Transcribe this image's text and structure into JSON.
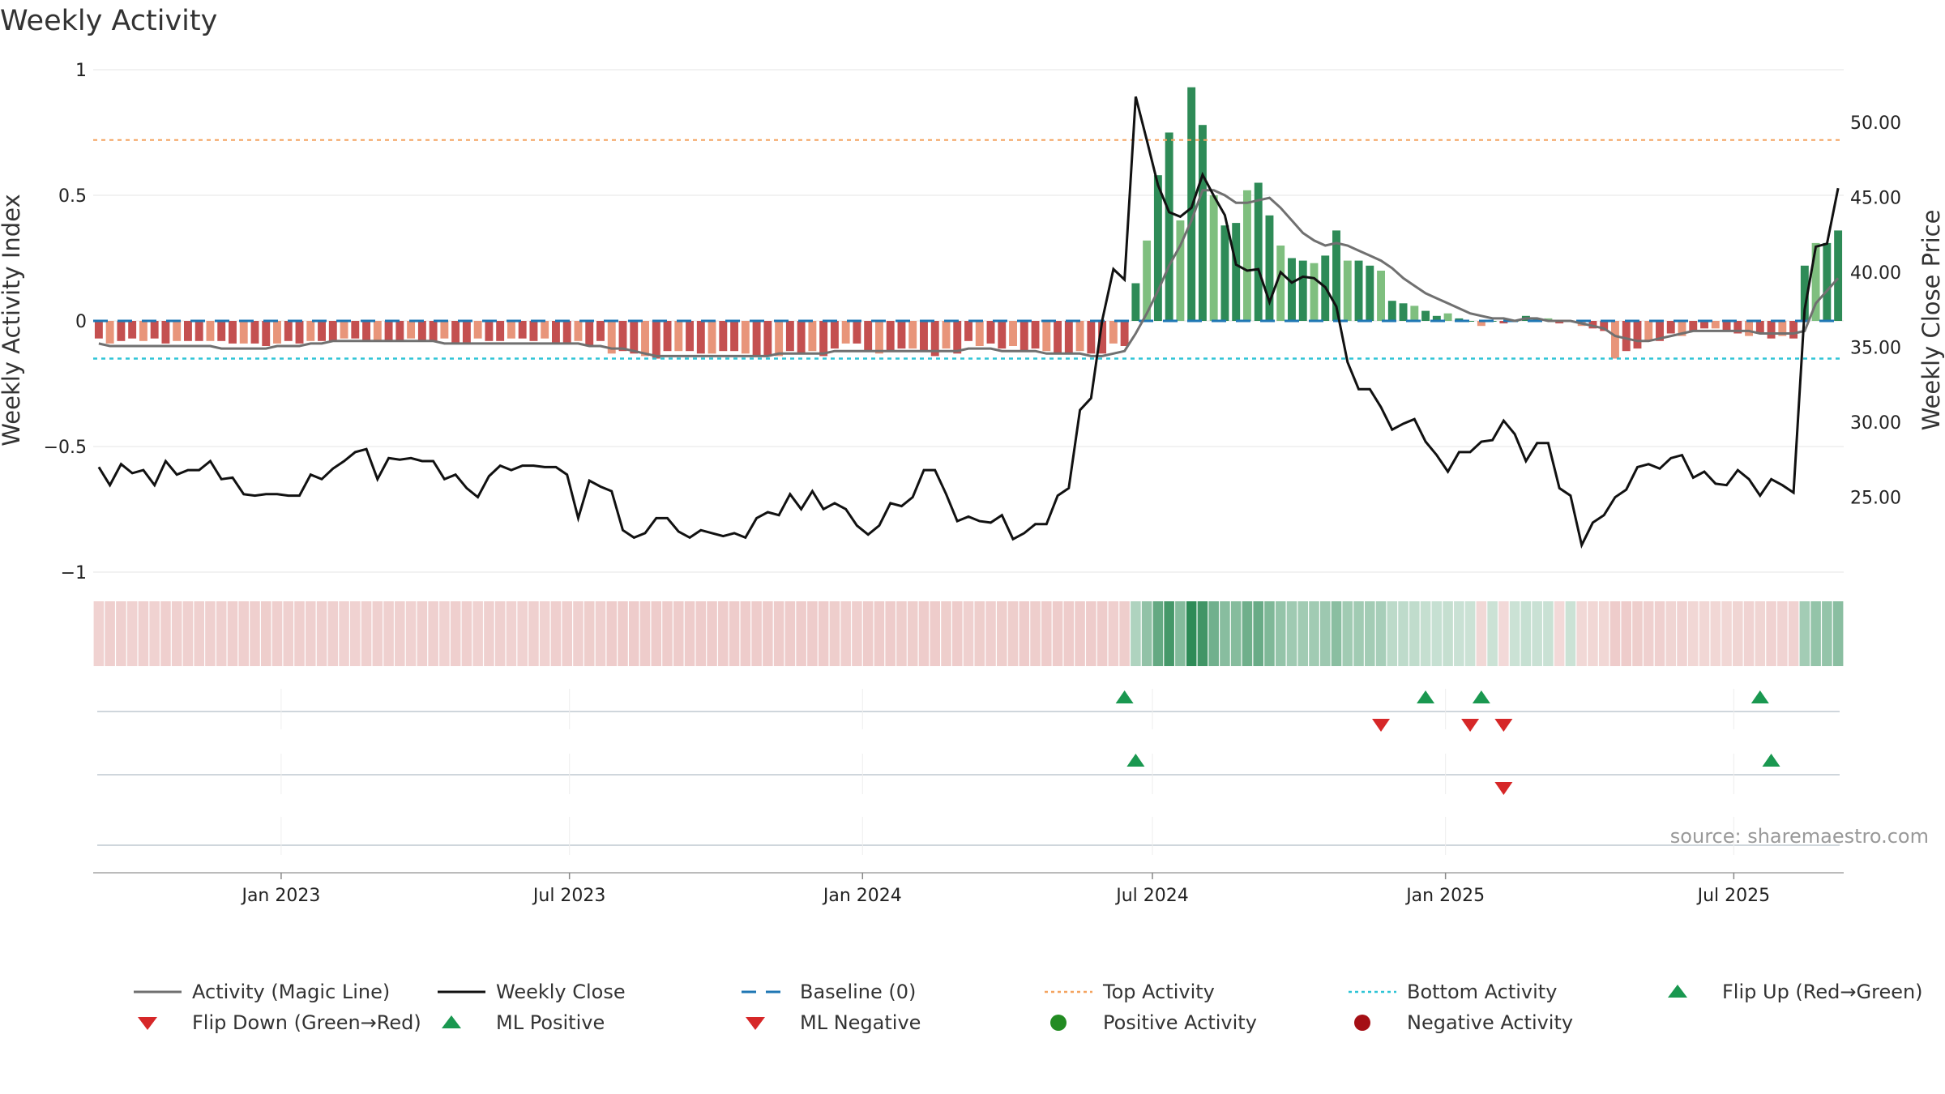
{
  "chart_data": {
    "type": "bar",
    "title": "Weekly Activity",
    "ylabel_left": "Weekly Activity Index",
    "ylabel_right": "Weekly Close Price",
    "ylim_left": [
      -1,
      1
    ],
    "ylim_right": [
      20,
      53.5
    ],
    "yticks_left": [
      {
        "value": 1,
        "label": "1"
      },
      {
        "value": 0.5,
        "label": "0.5"
      },
      {
        "value": 0,
        "label": "0"
      },
      {
        "value": -0.5,
        "label": "−0.5"
      },
      {
        "value": -1,
        "label": "−1"
      }
    ],
    "yticks_right": [
      {
        "value": 50,
        "label": "50.00"
      },
      {
        "value": 45,
        "label": "45.00"
      },
      {
        "value": 40,
        "label": "40.00"
      },
      {
        "value": 35,
        "label": "35.00"
      },
      {
        "value": 30,
        "label": "30.00"
      },
      {
        "value": 25,
        "label": "25.00"
      }
    ],
    "x_start": "2022-09-05",
    "xticks": [
      {
        "date": "2023-01-01",
        "label": "Jan 2023"
      },
      {
        "date": "2023-07-01",
        "label": "Jul 2023"
      },
      {
        "date": "2024-01-01",
        "label": "Jan 2024"
      },
      {
        "date": "2024-07-01",
        "label": "Jul 2024"
      },
      {
        "date": "2025-01-01",
        "label": "Jan 2025"
      },
      {
        "date": "2025-07-01",
        "label": "Jul 2025"
      }
    ],
    "top_activity": 0.72,
    "bottom_activity": -0.15,
    "grid": true,
    "activity": [
      -0.07,
      -0.09,
      -0.08,
      -0.07,
      -0.08,
      -0.07,
      -0.09,
      -0.08,
      -0.08,
      -0.08,
      -0.08,
      -0.08,
      -0.09,
      -0.09,
      -0.09,
      -0.1,
      -0.09,
      -0.08,
      -0.09,
      -0.08,
      -0.08,
      -0.08,
      -0.07,
      -0.07,
      -0.08,
      -0.08,
      -0.08,
      -0.08,
      -0.07,
      -0.08,
      -0.08,
      -0.07,
      -0.09,
      -0.09,
      -0.07,
      -0.08,
      -0.08,
      -0.07,
      -0.07,
      -0.08,
      -0.07,
      -0.09,
      -0.09,
      -0.08,
      -0.1,
      -0.08,
      -0.13,
      -0.12,
      -0.13,
      -0.14,
      -0.15,
      -0.12,
      -0.12,
      -0.12,
      -0.13,
      -0.13,
      -0.12,
      -0.12,
      -0.13,
      -0.14,
      -0.14,
      -0.14,
      -0.12,
      -0.13,
      -0.12,
      -0.14,
      -0.11,
      -0.09,
      -0.09,
      -0.12,
      -0.13,
      -0.12,
      -0.11,
      -0.11,
      -0.12,
      -0.14,
      -0.11,
      -0.13,
      -0.08,
      -0.1,
      -0.09,
      -0.11,
      -0.1,
      -0.12,
      -0.11,
      -0.12,
      -0.13,
      -0.13,
      -0.12,
      -0.13,
      -0.13,
      -0.09,
      -0.1,
      0.15,
      0.32,
      0.58,
      0.75,
      0.4,
      0.93,
      0.78,
      0.5,
      0.38,
      0.39,
      0.52,
      0.55,
      0.42,
      0.3,
      0.25,
      0.24,
      0.23,
      0.26,
      0.36,
      0.24,
      0.24,
      0.22,
      0.2,
      0.08,
      0.07,
      0.06,
      0.04,
      0.02,
      0.03,
      0.01,
      0.0,
      -0.02,
      0.0,
      -0.01,
      0.0,
      0.02,
      0.01,
      0.01,
      -0.01,
      0.0,
      -0.02,
      -0.03,
      -0.04,
      -0.15,
      -0.12,
      -0.11,
      -0.08,
      -0.08,
      -0.05,
      -0.06,
      -0.04,
      -0.03,
      -0.03,
      -0.04,
      -0.05,
      -0.06,
      -0.05,
      -0.07,
      -0.06,
      -0.07,
      0.22,
      0.31,
      0.31,
      0.36
    ],
    "magic_line": [
      -0.09,
      -0.1,
      -0.1,
      -0.1,
      -0.1,
      -0.1,
      -0.1,
      -0.1,
      -0.1,
      -0.1,
      -0.1,
      -0.11,
      -0.11,
      -0.11,
      -0.11,
      -0.11,
      -0.1,
      -0.1,
      -0.1,
      -0.09,
      -0.09,
      -0.08,
      -0.08,
      -0.08,
      -0.08,
      -0.08,
      -0.08,
      -0.08,
      -0.08,
      -0.08,
      -0.08,
      -0.09,
      -0.09,
      -0.09,
      -0.09,
      -0.09,
      -0.09,
      -0.09,
      -0.09,
      -0.09,
      -0.09,
      -0.09,
      -0.09,
      -0.09,
      -0.1,
      -0.1,
      -0.11,
      -0.11,
      -0.12,
      -0.13,
      -0.14,
      -0.14,
      -0.14,
      -0.14,
      -0.14,
      -0.14,
      -0.14,
      -0.14,
      -0.14,
      -0.14,
      -0.14,
      -0.13,
      -0.13,
      -0.13,
      -0.13,
      -0.13,
      -0.12,
      -0.12,
      -0.12,
      -0.12,
      -0.12,
      -0.12,
      -0.12,
      -0.12,
      -0.12,
      -0.12,
      -0.12,
      -0.12,
      -0.11,
      -0.11,
      -0.11,
      -0.12,
      -0.12,
      -0.12,
      -0.12,
      -0.13,
      -0.13,
      -0.13,
      -0.13,
      -0.14,
      -0.14,
      -0.13,
      -0.12,
      -0.05,
      0.03,
      0.12,
      0.22,
      0.3,
      0.4,
      0.52,
      0.52,
      0.5,
      0.47,
      0.47,
      0.48,
      0.49,
      0.45,
      0.4,
      0.35,
      0.32,
      0.3,
      0.31,
      0.3,
      0.28,
      0.26,
      0.24,
      0.21,
      0.17,
      0.14,
      0.11,
      0.09,
      0.07,
      0.05,
      0.03,
      0.02,
      0.01,
      0.01,
      0.0,
      0.01,
      0.01,
      0.0,
      0.0,
      0.0,
      -0.01,
      -0.02,
      -0.03,
      -0.06,
      -0.07,
      -0.08,
      -0.08,
      -0.07,
      -0.06,
      -0.05,
      -0.04,
      -0.04,
      -0.04,
      -0.04,
      -0.04,
      -0.04,
      -0.05,
      -0.05,
      -0.05,
      -0.05,
      -0.04,
      0.07,
      0.12,
      0.17
    ],
    "weekly_close": [
      27.0,
      25.8,
      27.2,
      26.6,
      26.8,
      25.8,
      27.4,
      26.5,
      26.8,
      26.8,
      27.4,
      26.2,
      26.3,
      25.2,
      25.1,
      25.2,
      25.2,
      25.1,
      25.1,
      26.5,
      26.2,
      26.9,
      27.4,
      28.0,
      28.2,
      26.2,
      27.6,
      27.5,
      27.6,
      27.4,
      27.4,
      26.2,
      26.5,
      25.6,
      25.0,
      26.4,
      27.1,
      26.8,
      27.1,
      27.1,
      27.0,
      27.0,
      26.5,
      23.6,
      26.1,
      25.7,
      25.4,
      22.8,
      22.3,
      22.6,
      23.6,
      23.6,
      22.7,
      22.3,
      22.8,
      22.6,
      22.4,
      22.6,
      22.3,
      23.6,
      24.0,
      23.8,
      25.2,
      24.2,
      25.4,
      24.2,
      24.6,
      24.2,
      23.1,
      22.5,
      23.1,
      24.6,
      24.4,
      25.0,
      26.8,
      26.8,
      25.2,
      23.4,
      23.7,
      23.4,
      23.3,
      23.8,
      22.2,
      22.6,
      23.2,
      23.2,
      25.1,
      25.6,
      30.8,
      31.6,
      36.8,
      40.2,
      39.5,
      51.7,
      48.8,
      45.8,
      44.0,
      43.7,
      44.3,
      46.5,
      45.1,
      43.8,
      40.5,
      40.1,
      40.2,
      38.0,
      40.0,
      39.3,
      39.7,
      39.6,
      39.0,
      37.7,
      34.0,
      32.2,
      32.2,
      31.0,
      29.5,
      29.9,
      30.2,
      28.7,
      27.8,
      26.7,
      28.0,
      28.0,
      28.7,
      28.8,
      30.1,
      29.2,
      27.4,
      28.6,
      28.6,
      25.6,
      25.1,
      21.8,
      23.3,
      23.8,
      25.0,
      25.5,
      27.0,
      27.2,
      26.9,
      27.6,
      27.8,
      26.3,
      26.7,
      25.9,
      25.8,
      26.8,
      26.2,
      25.1,
      26.2,
      25.8,
      25.3,
      37.5,
      41.7,
      41.9,
      45.6
    ],
    "signal_rows": [
      {
        "name": "Flip Up / Flip Down",
        "up": [
          92,
          119,
          124,
          149
        ],
        "down": [
          115,
          123,
          126
        ]
      },
      {
        "name": "ML Positive / ML Negative",
        "up": [
          93,
          150
        ],
        "down": [
          126
        ]
      },
      {
        "name": "Positive / Negative Activity",
        "up": [],
        "down": []
      }
    ],
    "source": "source: sharemaestro.com",
    "legend": [
      {
        "label": "Activity (Magic Line)",
        "marker": "line",
        "color": "#707070"
      },
      {
        "label": "Weekly Close",
        "marker": "line",
        "color": "#111111"
      },
      {
        "label": "Baseline (0)",
        "marker": "dash",
        "color": "#1f77b4"
      },
      {
        "label": "Top Activity",
        "marker": "dot",
        "color": "#f4a460"
      },
      {
        "label": "Bottom Activity",
        "marker": "dot",
        "color": "#2ec4d6"
      },
      {
        "label": "Flip Up (Red→Green)",
        "marker": "triangle-up",
        "color": "#1a9850"
      },
      {
        "label": "Flip Down (Green→Red)",
        "marker": "triangle-down",
        "color": "#d62728"
      },
      {
        "label": "ML Positive",
        "marker": "triangle-up",
        "color": "#1a9850"
      },
      {
        "label": "ML Negative",
        "marker": "triangle-down",
        "color": "#d62728"
      },
      {
        "label": "Positive Activity",
        "marker": "circle",
        "color": "#228b22"
      },
      {
        "label": "Negative Activity",
        "marker": "circle",
        "color": "#a50f15"
      }
    ],
    "colors": {
      "strong_green": "#2e8b57",
      "light_green": "#7fbf7f",
      "strong_red": "#c45050",
      "light_red": "#e8957a",
      "magic_line": "#707070",
      "close": "#111111",
      "baseline": "#1f77b4",
      "top": "#f4a460",
      "bottom": "#2ec4d6"
    }
  }
}
